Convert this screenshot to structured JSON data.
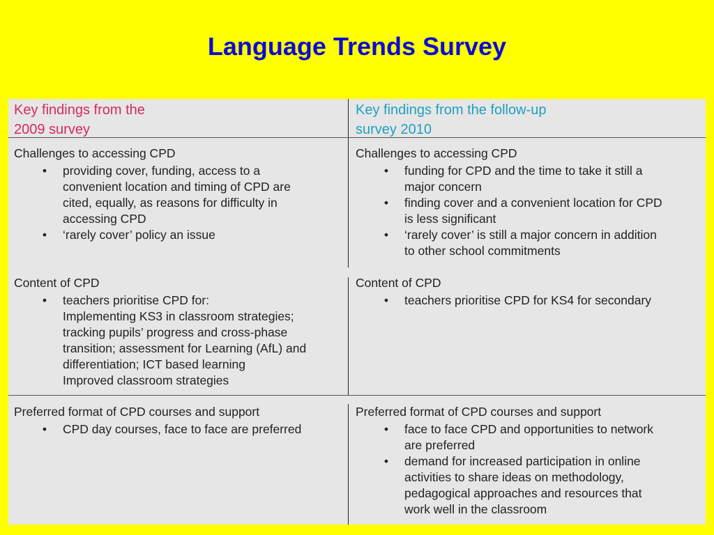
{
  "title": "Language Trends Survey",
  "table": {
    "col_left_header_lines": [
      "Key findings from the",
      "2009 survey"
    ],
    "col_right_header_lines": [
      "Key findings from the follow-up",
      "survey 2010"
    ],
    "rows": [
      {
        "left": {
          "heading": "Challenges to accessing CPD",
          "bullets": [
            [
              "providing cover, funding, access to a",
              "convenient location and timing of CPD are",
              "cited, equally, as reasons for difficulty in",
              "accessing CPD"
            ],
            [
              "‘rarely cover’ policy an issue"
            ]
          ]
        },
        "right": {
          "heading": "Challenges to accessing CPD",
          "bullets": [
            [
              "funding for CPD and the time to take it still a",
              "major concern"
            ],
            [
              "finding cover and a convenient location for CPD",
              "is less significant"
            ],
            [
              "‘rarely cover’ is still a major concern in addition",
              "to other school commitments"
            ]
          ]
        }
      },
      {
        "left": {
          "heading": "Content of CPD",
          "bullets": [
            [
              "teachers prioritise CPD for:",
              "Implementing KS3 in classroom strategies;",
              "tracking pupils’ progress and cross-phase",
              "transition; assessment for Learning (AfL) and",
              "differentiation; ICT based learning",
              "Improved classroom strategies"
            ]
          ]
        },
        "right": {
          "heading": "Content of CPD",
          "bullets": [
            [
              "teachers prioritise CPD for KS4 for secondary"
            ]
          ]
        }
      },
      {
        "left": {
          "heading": "Preferred format of CPD courses and support",
          "bullets": [
            [
              "CPD day courses, face to face are preferred"
            ]
          ]
        },
        "right": {
          "heading": "Preferred format of CPD courses and support",
          "bullets": [
            [
              "face to face CPD and opportunities to network",
              "are preferred"
            ],
            [
              "demand for increased participation in online",
              "activities to share ideas on methodology,",
              "pedagogical approaches and resources that",
              "work well in the classroom"
            ]
          ]
        }
      }
    ],
    "bullet_glyph": "•"
  }
}
